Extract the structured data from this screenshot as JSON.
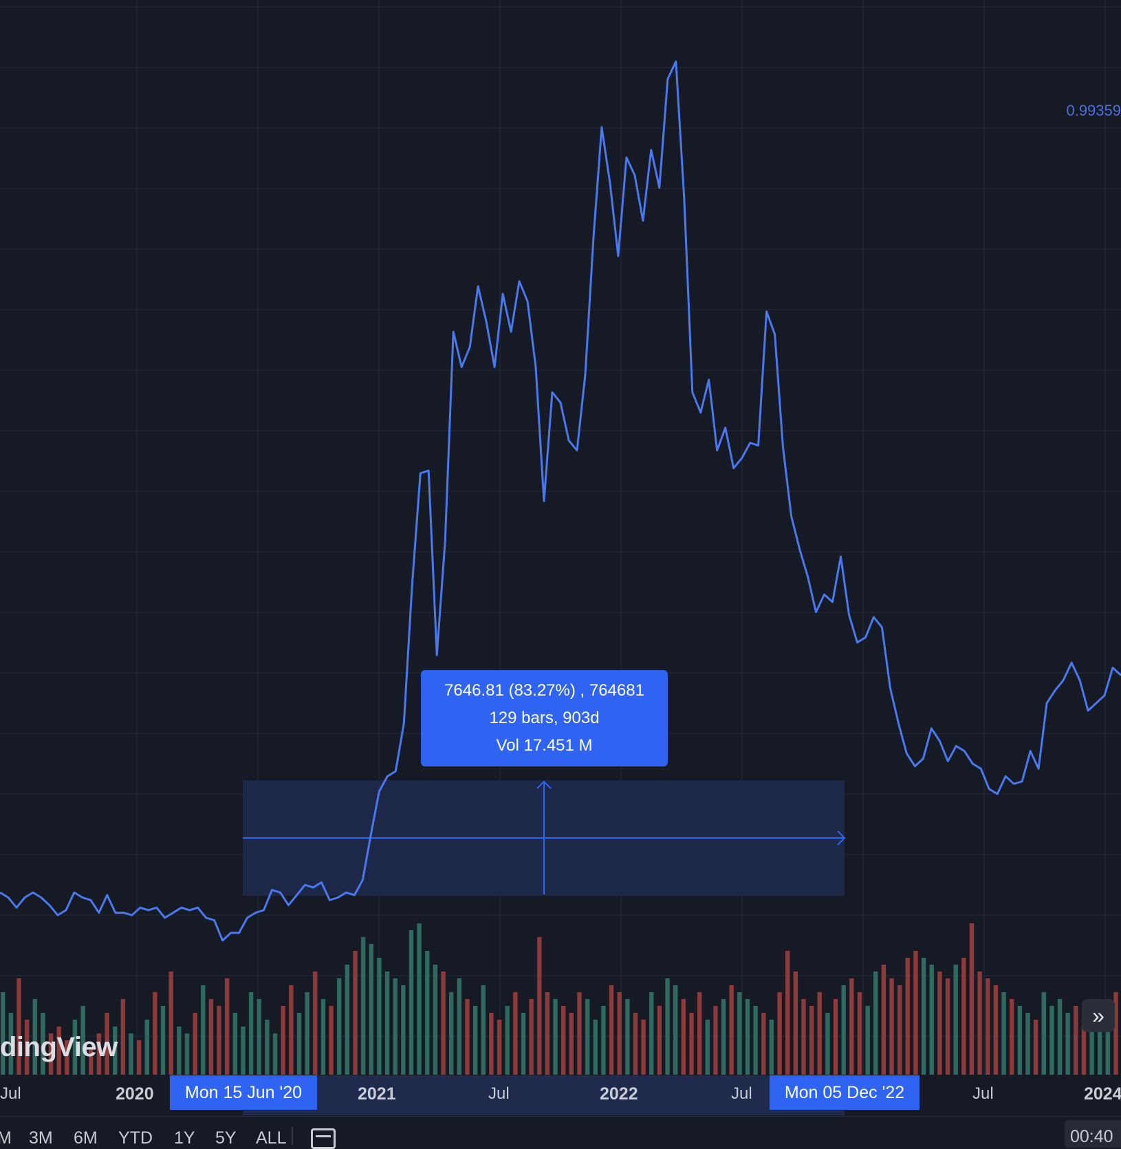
{
  "colors": {
    "background": "#161a25",
    "line": "#4a78ef",
    "volume_up": "#2f6a60",
    "volume_down": "#8c3a3a",
    "grid": "#262a36",
    "accent": "#2f63f2",
    "measure_fill": "#1f2a4d"
  },
  "price_label": "0.99359",
  "watermark": "dingView",
  "measure": {
    "line1": "7646.81 (83.27%) , 764681",
    "line2": "129 bars, 903d",
    "line3": "Vol 17.451 M"
  },
  "axis": {
    "labels": [
      {
        "text": "Jul",
        "bold": false
      },
      {
        "text": "2020",
        "bold": true
      },
      {
        "text": "2021",
        "bold": true
      },
      {
        "text": "Jul",
        "bold": false
      },
      {
        "text": "2022",
        "bold": true
      },
      {
        "text": "Jul",
        "bold": false
      },
      {
        "text": "Jul",
        "bold": false
      },
      {
        "text": "2024",
        "bold": true
      }
    ],
    "range_start": "Mon 15 Jun '20",
    "range_end": "Mon 05 Dec '22"
  },
  "periods": [
    "M",
    "3M",
    "6M",
    "YTD",
    "1Y",
    "5Y",
    "ALL"
  ],
  "time": "00:40",
  "scroll_icon": "double-chevron-right-icon",
  "calendar_icon": "calendar-icon",
  "chart_data": {
    "type": "line",
    "x_range": [
      "2019-06",
      "2024-01"
    ],
    "series": [
      {
        "values": [
          6.3,
          6.1,
          5.7,
          6.1,
          6.3,
          6.1,
          5.8,
          5.4,
          5.6,
          6.3,
          6.1,
          6.0,
          5.5,
          6.2,
          5.5,
          5.5,
          5.4,
          5.7,
          5.6,
          5.7,
          5.3,
          5.5,
          5.7,
          5.6,
          5.7,
          5.3,
          5.2,
          4.4,
          4.7,
          4.7,
          5.3,
          5.5,
          5.6,
          6.4,
          6.3,
          5.8,
          6.2,
          6.6,
          6.5,
          6.7,
          6.0,
          6.1,
          6.3,
          6.2,
          6.8,
          8.6,
          10.3,
          10.9,
          11.1,
          13.0,
          18.5,
          22.9,
          23.0,
          15.7,
          20.2,
          28.5,
          27.1,
          27.9,
          30.3,
          28.9,
          27.1,
          30.0,
          28.5,
          30.5,
          29.7,
          27.1,
          21.8,
          26.1,
          25.7,
          24.2,
          23.8,
          26.8,
          32.2,
          36.6,
          34.4,
          31.5,
          35.4,
          34.7,
          32.9,
          35.7,
          34.2,
          38.5,
          39.2,
          33.8,
          26.1,
          25.3,
          26.6,
          23.8,
          24.7,
          23.1,
          23.5,
          24.1,
          24.0,
          29.3,
          28.4,
          23.9,
          21.2,
          19.9,
          18.8,
          17.4,
          18.1,
          17.8,
          19.6,
          17.3,
          16.2,
          16.4,
          17.2,
          16.8,
          14.4,
          13.0,
          11.8,
          11.3,
          11.6,
          12.8,
          12.3,
          11.5,
          12.1,
          11.9,
          11.4,
          11.2,
          10.4,
          10.2,
          10.9,
          10.6,
          10.7,
          11.9,
          11.2,
          13.8,
          14.3,
          14.7,
          15.4,
          14.7,
          13.5,
          13.8,
          14.1,
          15.2,
          14.9
        ],
        "note": "sampled line values in approximate data units; the price axis is not labeled in the image"
      }
    ],
    "volume": [
      12,
      9,
      14,
      8,
      11,
      9,
      6,
      7,
      5,
      8,
      10,
      4,
      6,
      9,
      7,
      11,
      6,
      5,
      8,
      12,
      10,
      15,
      7,
      6,
      9,
      13,
      11,
      10,
      14,
      9,
      7,
      12,
      11,
      8,
      6,
      10,
      13,
      9,
      12,
      15,
      11,
      10,
      14,
      16,
      18,
      20,
      19,
      17,
      15,
      14,
      13,
      21,
      22,
      18,
      16,
      15,
      12,
      14,
      11,
      10,
      13,
      9,
      8,
      10,
      12,
      9,
      11,
      20,
      12,
      11,
      10,
      9,
      12,
      11,
      8,
      10,
      13,
      12,
      11,
      9,
      8,
      12,
      10,
      14,
      13,
      11,
      9,
      12,
      8,
      10,
      11,
      13,
      12,
      11,
      10,
      9,
      8,
      12,
      18,
      15,
      11,
      10,
      12,
      9,
      11,
      13,
      14,
      12,
      10,
      15,
      16,
      14,
      13,
      17,
      18,
      17,
      16,
      15,
      14,
      16,
      17,
      22,
      15,
      14,
      13,
      12,
      11,
      10,
      9,
      8,
      12,
      10,
      11,
      9,
      10,
      8,
      9,
      7,
      11,
      12
    ],
    "measurement": {
      "start": "Mon 15 Jun '20",
      "end": "Mon 05 Dec '22",
      "change": "7646.81 (83.27%)",
      "bars": 129,
      "days": 903,
      "volume": "17.451 M"
    },
    "grid": true
  }
}
